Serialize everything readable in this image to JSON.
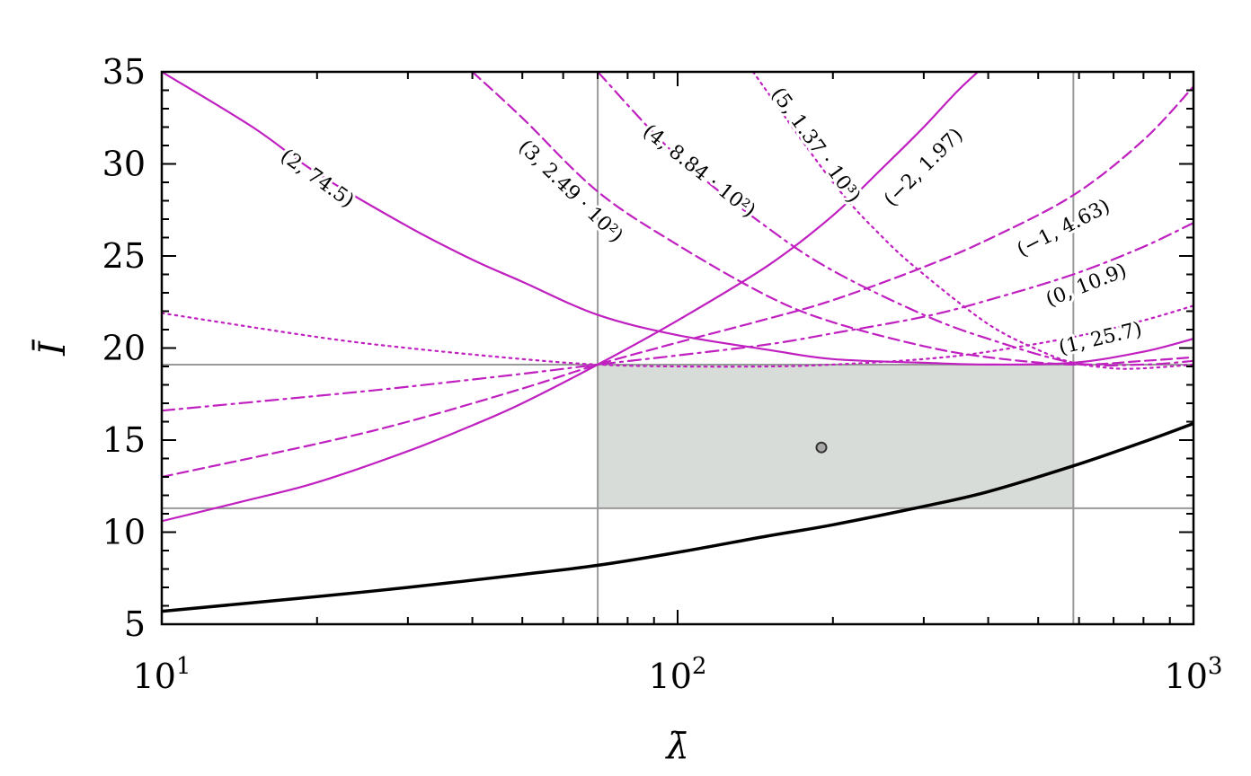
{
  "chart_data": {
    "type": "line",
    "xscale": "log",
    "xlim": [
      10,
      1000
    ],
    "ylim": [
      5,
      35
    ],
    "xlabel": "λ̄",
    "ylabel": "Ī",
    "x_ticks": [
      {
        "value": 10,
        "base": "10",
        "exp": "1"
      },
      {
        "value": 100,
        "base": "10",
        "exp": "2"
      },
      {
        "value": 1000,
        "base": "10",
        "exp": "3"
      }
    ],
    "y_ticks": [
      5,
      10,
      15,
      20,
      25,
      30,
      35
    ],
    "grid": false,
    "colors": {
      "magenta": "#c020c0",
      "black": "#000000",
      "gray": "#999999",
      "fill": "#d8dcd8"
    },
    "region": {
      "x_range": [
        70,
        585
      ],
      "y_range": [
        11.3,
        19.1
      ],
      "fill": "#d8dcd8"
    },
    "point": {
      "x": 190,
      "y": 14.6
    },
    "series": [
      {
        "name": "(2, 74.5)",
        "style": "solid",
        "color": "#c020c0",
        "label_at": [
          20,
          29.2
        ],
        "x": [
          10,
          15,
          20,
          30,
          40,
          50,
          70,
          100,
          150,
          200,
          300,
          400,
          585,
          800,
          1000
        ],
        "y": [
          35,
          32,
          29.5,
          26.6,
          24.8,
          23.6,
          21.8,
          20.7,
          19.9,
          19.4,
          19.2,
          19.1,
          19.2,
          19.8,
          20.5
        ]
      },
      {
        "name": "(−2, 1.97)",
        "style": "solid",
        "color": "#c020c0",
        "label_at": [
          300,
          29.8
        ],
        "x": [
          10,
          15,
          20,
          30,
          40,
          50,
          70,
          100,
          150,
          200,
          250,
          300,
          350,
          400
        ],
        "y": [
          10.6,
          11.8,
          12.7,
          14.4,
          15.8,
          17.0,
          19.1,
          21.5,
          24.5,
          27.2,
          29.8,
          32.0,
          34.0,
          35.5
        ]
      },
      {
        "name": "(−1, 4.63)",
        "style": "dashed",
        "color": "#c020c0",
        "label_at": [
          560,
          26.5
        ],
        "x": [
          10,
          20,
          30,
          50,
          70,
          100,
          150,
          200,
          300,
          400,
          585,
          800,
          1000
        ],
        "y": [
          13.0,
          14.8,
          16.0,
          17.8,
          19.1,
          20.3,
          21.6,
          22.6,
          24.4,
          25.9,
          28.3,
          31.3,
          34.2
        ]
      },
      {
        "name": "(0, 10.9)",
        "style": "dashdot",
        "color": "#c020c0",
        "label_at": [
          620,
          23.4
        ],
        "x": [
          10,
          20,
          30,
          50,
          70,
          100,
          150,
          200,
          300,
          400,
          585,
          800,
          1000
        ],
        "y": [
          16.6,
          17.4,
          17.9,
          18.6,
          19.1,
          19.6,
          20.2,
          20.8,
          21.7,
          22.6,
          24.0,
          25.5,
          26.8
        ]
      },
      {
        "name": "(1, 25.7)",
        "style": "dotted",
        "color": "#c020c0",
        "label_at": [
          660,
          20.5
        ],
        "x": [
          10,
          20,
          30,
          50,
          70,
          100,
          150,
          200,
          300,
          400,
          585,
          800,
          1000
        ],
        "y": [
          21.9,
          20.6,
          20.0,
          19.4,
          19.1,
          19.0,
          19.0,
          19.1,
          19.4,
          19.8,
          20.6,
          21.5,
          22.3
        ]
      },
      {
        "name": "(3, 2.49 · 10²)",
        "style": "dashed",
        "color": "#c020c0",
        "label_at": [
          62,
          28.5
        ],
        "x": [
          40,
          50,
          70,
          100,
          150,
          200,
          300,
          400,
          585,
          800,
          1000
        ],
        "y": [
          35,
          32.5,
          28.5,
          25.6,
          22.8,
          21.4,
          20.1,
          19.5,
          19.1,
          19.3,
          19.5
        ]
      },
      {
        "name": "(4, 8.84 · 10²)",
        "style": "dashdot",
        "color": "#c020c0",
        "label_at": [
          110,
          29.6
        ],
        "x": [
          70,
          100,
          150,
          200,
          300,
          400,
          585,
          800,
          1000
        ],
        "y": [
          35,
          30.4,
          26.5,
          24.2,
          21.8,
          20.5,
          19.2,
          19.1,
          19.3
        ]
      },
      {
        "name": "(5, 1.37 · 10³)",
        "style": "dotted",
        "color": "#c020c0",
        "label_at": [
          185,
          31.0
        ],
        "x": [
          140,
          200,
          250,
          300,
          400,
          500,
          585,
          700,
          800,
          1000
        ],
        "y": [
          35,
          29.0,
          26.0,
          24.0,
          21.3,
          19.9,
          19.2,
          18.9,
          18.9,
          19.1
        ]
      },
      {
        "name": "",
        "style": "solid",
        "color": "#000000",
        "width": 3.5,
        "x": [
          10,
          20,
          30,
          50,
          70,
          100,
          150,
          200,
          300,
          400,
          585,
          800,
          1000
        ],
        "y": [
          5.7,
          6.5,
          7.0,
          7.7,
          8.2,
          8.9,
          9.8,
          10.4,
          11.4,
          12.2,
          13.6,
          14.9,
          15.9
        ]
      }
    ]
  }
}
